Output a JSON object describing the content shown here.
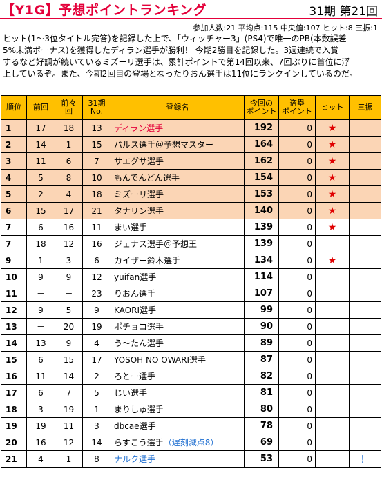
{
  "header": {
    "title": "【Y1G】予想ポイントランキング",
    "period": "31期 第21回",
    "stats": "参加人数:21 平均点:115 中央値:107 ヒット:8 三振:1"
  },
  "summary": [
    "ヒット(1～3位タイトル完答)を記録した上で、「ウィッチャー3」(PS4)で唯一のPB(本数誤差",
    "5%未満ボーナス)を獲得したディラン選手が勝利！ 今期2勝目を記録した。3週連続で入賞",
    "するなど好調が続いているミズーリ選手は、累計ポイントで第14回以来、7回ぶりに首位に浮",
    "上しているぞ。また、今期2回目の登場となったりおん選手は11位にランクインしているのだ。"
  ],
  "columns": {
    "rank": "順位",
    "prev": "前回",
    "prev2_a": "前々",
    "prev2_b": "回",
    "period_a": "31期",
    "period_b": "No.",
    "name": "登録名",
    "points_a": "今回の",
    "points_b": "ポイント",
    "steal_a": "盗塁",
    "steal_b": "ポイント",
    "hit": "ヒット",
    "miss": "三振"
  },
  "rows": [
    {
      "rank": "1",
      "prev": "17",
      "prev2": "18",
      "no": "13",
      "name": "ディラン選手",
      "note": "",
      "points": "192",
      "steal": "0",
      "hit": "★",
      "miss": "",
      "top": true,
      "style": "red"
    },
    {
      "rank": "2",
      "prev": "14",
      "prev2": "1",
      "no": "15",
      "name": "パルス選手＠予想マスター",
      "note": "",
      "points": "164",
      "steal": "0",
      "hit": "★",
      "miss": "",
      "top": true,
      "style": ""
    },
    {
      "rank": "3",
      "prev": "11",
      "prev2": "6",
      "no": "7",
      "name": "サエグサ選手",
      "note": "",
      "points": "162",
      "steal": "0",
      "hit": "★",
      "miss": "",
      "top": true,
      "style": ""
    },
    {
      "rank": "4",
      "prev": "5",
      "prev2": "8",
      "no": "10",
      "name": "もんでんどん選手",
      "note": "",
      "points": "154",
      "steal": "0",
      "hit": "★",
      "miss": "",
      "top": true,
      "style": ""
    },
    {
      "rank": "5",
      "prev": "2",
      "prev2": "4",
      "no": "18",
      "name": "ミズーリ選手",
      "note": "",
      "points": "153",
      "steal": "0",
      "hit": "★",
      "miss": "",
      "top": true,
      "style": ""
    },
    {
      "rank": "6",
      "prev": "15",
      "prev2": "17",
      "no": "21",
      "name": "タナリン選手",
      "note": "",
      "points": "140",
      "steal": "0",
      "hit": "★",
      "miss": "",
      "top": true,
      "style": ""
    },
    {
      "rank": "7",
      "prev": "6",
      "prev2": "16",
      "no": "11",
      "name": "まい選手",
      "note": "",
      "points": "139",
      "steal": "0",
      "hit": "★",
      "miss": "",
      "top": false,
      "style": ""
    },
    {
      "rank": "7",
      "prev": "18",
      "prev2": "12",
      "no": "16",
      "name": "ジェナス選手＠予想王",
      "note": "",
      "points": "139",
      "steal": "0",
      "hit": "",
      "miss": "",
      "top": false,
      "style": ""
    },
    {
      "rank": "9",
      "prev": "1",
      "prev2": "3",
      "no": "6",
      "name": "カイザー鈴木選手",
      "note": "",
      "points": "134",
      "steal": "0",
      "hit": "★",
      "miss": "",
      "top": false,
      "style": ""
    },
    {
      "rank": "10",
      "prev": "9",
      "prev2": "9",
      "no": "12",
      "name": "yuifan選手",
      "note": "",
      "points": "114",
      "steal": "0",
      "hit": "",
      "miss": "",
      "top": false,
      "style": ""
    },
    {
      "rank": "11",
      "prev": "－",
      "prev2": "－",
      "no": "23",
      "name": "りおん選手",
      "note": "",
      "points": "107",
      "steal": "0",
      "hit": "",
      "miss": "",
      "top": false,
      "style": ""
    },
    {
      "rank": "12",
      "prev": "9",
      "prev2": "5",
      "no": "9",
      "name": "KAORI選手",
      "note": "",
      "points": "99",
      "steal": "0",
      "hit": "",
      "miss": "",
      "top": false,
      "style": ""
    },
    {
      "rank": "13",
      "prev": "－",
      "prev2": "20",
      "no": "19",
      "name": "ポチョコ選手",
      "note": "",
      "points": "90",
      "steal": "0",
      "hit": "",
      "miss": "",
      "top": false,
      "style": ""
    },
    {
      "rank": "14",
      "prev": "13",
      "prev2": "9",
      "no": "4",
      "name": "う～たん選手",
      "note": "",
      "points": "89",
      "steal": "0",
      "hit": "",
      "miss": "",
      "top": false,
      "style": ""
    },
    {
      "rank": "15",
      "prev": "6",
      "prev2": "15",
      "no": "17",
      "name": "YOSOH NO OWARI選手",
      "note": "",
      "points": "87",
      "steal": "0",
      "hit": "",
      "miss": "",
      "top": false,
      "style": ""
    },
    {
      "rank": "16",
      "prev": "11",
      "prev2": "14",
      "no": "2",
      "name": "ろとー選手",
      "note": "",
      "points": "82",
      "steal": "0",
      "hit": "",
      "miss": "",
      "top": false,
      "style": ""
    },
    {
      "rank": "17",
      "prev": "6",
      "prev2": "7",
      "no": "5",
      "name": "じい選手",
      "note": "",
      "points": "81",
      "steal": "0",
      "hit": "",
      "miss": "",
      "top": false,
      "style": ""
    },
    {
      "rank": "18",
      "prev": "3",
      "prev2": "19",
      "no": "1",
      "name": "まりしゅ選手",
      "note": "",
      "points": "80",
      "steal": "0",
      "hit": "",
      "miss": "",
      "top": false,
      "style": ""
    },
    {
      "rank": "19",
      "prev": "19",
      "prev2": "11",
      "no": "3",
      "name": "dbcae選手",
      "note": "",
      "points": "78",
      "steal": "0",
      "hit": "",
      "miss": "",
      "top": false,
      "style": ""
    },
    {
      "rank": "20",
      "prev": "16",
      "prev2": "12",
      "no": "14",
      "name": "らすこう選手",
      "note": "（遅刻減点8）",
      "points": "69",
      "steal": "0",
      "hit": "",
      "miss": "",
      "top": false,
      "style": ""
    },
    {
      "rank": "21",
      "prev": "4",
      "prev2": "1",
      "no": "8",
      "name": "ナルク選手",
      "note": "",
      "points": "53",
      "steal": "0",
      "hit": "",
      "miss": "！",
      "top": false,
      "style": "blue"
    }
  ]
}
